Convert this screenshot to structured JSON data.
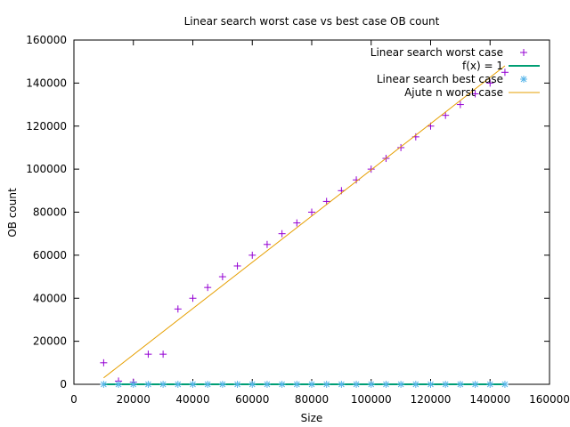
{
  "chart_data": {
    "type": "scatter",
    "title": "Linear search worst case vs best case OB count",
    "xlabel": "Size",
    "ylabel": "OB count",
    "xlim": [
      0,
      160000
    ],
    "ylim": [
      0,
      160000
    ],
    "x_ticks": [
      0,
      20000,
      40000,
      60000,
      80000,
      100000,
      120000,
      140000,
      160000
    ],
    "y_ticks": [
      0,
      20000,
      40000,
      60000,
      80000,
      100000,
      120000,
      140000,
      160000
    ],
    "x_tick_labels": [
      "0",
      "20000",
      "40000",
      "60000",
      "80000",
      "100000",
      "120000",
      "140000",
      "160000"
    ],
    "y_tick_labels": [
      "0",
      "20000",
      "40000",
      "60000",
      "80000",
      "100000",
      "120000",
      "140000",
      "160000"
    ],
    "grid": false,
    "legend_position": "top-right",
    "series": [
      {
        "name": "Linear search worst case",
        "kind": "points",
        "marker": "plus",
        "color": "#9400d3",
        "x": [
          10000,
          15000,
          20000,
          25000,
          30000,
          35000,
          40000,
          45000,
          50000,
          55000,
          60000,
          65000,
          70000,
          75000,
          80000,
          85000,
          90000,
          95000,
          100000,
          105000,
          110000,
          115000,
          120000,
          125000,
          130000,
          135000,
          140000,
          145000
        ],
        "y": [
          10000,
          1500,
          1000,
          14000,
          14000,
          35000,
          40000,
          45000,
          50000,
          55000,
          60000,
          65000,
          70000,
          75000,
          80000,
          85000,
          90000,
          95000,
          100000,
          105000,
          110000,
          115000,
          120000,
          125000,
          130000,
          135000,
          140000,
          145000
        ]
      },
      {
        "name": "f(x) = 1",
        "kind": "line",
        "color": "#009e73",
        "x": [
          10000,
          145000
        ],
        "y": [
          1,
          1
        ]
      },
      {
        "name": "Linear search best case",
        "kind": "points",
        "marker": "star",
        "color": "#56b4e9",
        "x": [
          10000,
          15000,
          20000,
          25000,
          30000,
          35000,
          40000,
          45000,
          50000,
          55000,
          60000,
          65000,
          70000,
          75000,
          80000,
          85000,
          90000,
          95000,
          100000,
          105000,
          110000,
          115000,
          120000,
          125000,
          130000,
          135000,
          140000,
          145000
        ],
        "y": [
          1,
          1,
          1,
          1,
          1,
          1,
          1,
          1,
          1,
          1,
          1,
          1,
          1,
          1,
          1,
          1,
          1,
          1,
          1,
          1,
          1,
          1,
          1,
          1,
          1,
          1,
          1,
          1
        ]
      },
      {
        "name": "Ajute n worst case",
        "kind": "line",
        "color": "#e69f00",
        "x": [
          10000,
          145000
        ],
        "y": [
          3000,
          148000
        ]
      }
    ]
  }
}
